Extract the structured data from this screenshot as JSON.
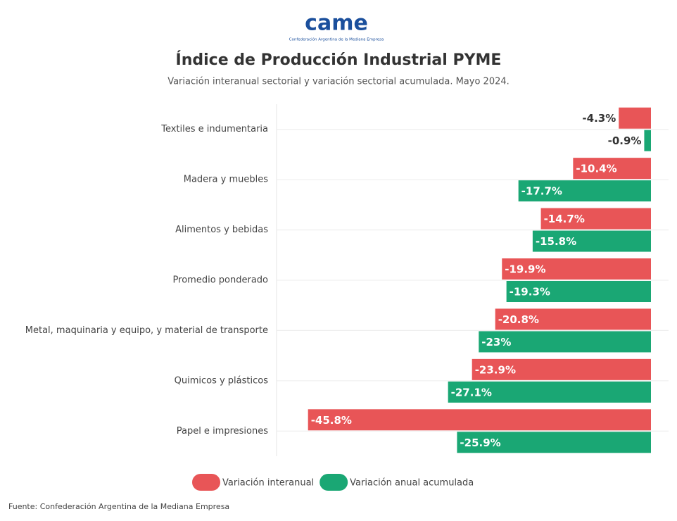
{
  "logo": {
    "text": "came",
    "subtitle": "Confederación Argentina de la Mediana Empresa"
  },
  "chart_data": {
    "type": "hbar",
    "title": "Índice de Producción Industrial PYME",
    "subtitle": "Variación interanual sectorial y variación sectorial acumulada. Mayo 2024.",
    "categories": [
      "Textiles e indumentaria",
      "Madera y muebles",
      "Alimentos y bebidas",
      "Promedio ponderado",
      "Metal, maquinaria y equipo, y material de transporte",
      "Quimicos y plásticos",
      "Papel e impresiones"
    ],
    "series": [
      {
        "name": "Variación interanual",
        "color": "#e85557",
        "values": [
          -4.3,
          -10.4,
          -14.7,
          -19.9,
          -20.8,
          -23.9,
          -45.8
        ],
        "value_labels": [
          "-4.3%",
          "-10.4%",
          "-14.7%",
          "-19.9%",
          "-20.8%",
          "-23.9%",
          "-45.8%"
        ]
      },
      {
        "name": "Variación anual acumulada",
        "color": "#1aa774",
        "values": [
          -0.9,
          -17.7,
          -15.8,
          -19.3,
          -23,
          -27.1,
          -25.9
        ],
        "value_labels": [
          "-0.9%",
          "-17.7%",
          "-15.8%",
          "-19.3%",
          "-23%",
          "-27.1%",
          "-25.9%"
        ]
      }
    ],
    "xlim": [
      -50,
      0
    ],
    "grid": true,
    "source": "Fuente: Confederación Argentina de la Mediana Empresa"
  }
}
